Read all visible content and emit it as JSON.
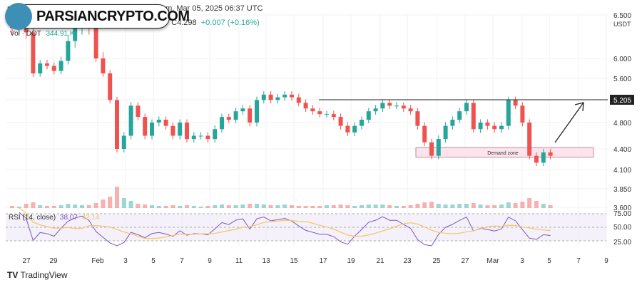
{
  "header": {
    "publisher": "m",
    "published": "published on TradingView.com, Mar 05, 2025 06:37 UTC",
    "ohlc_partial": "8",
    "close": "C4.298",
    "change": "+0.007 (+0.16%)",
    "volume_label": "Vol · DOT",
    "volume_value": "344.91 K"
  },
  "watermark": {
    "text": "PARSIANCRYPTO.COM"
  },
  "footer": {
    "brand": "TradingView"
  },
  "colors": {
    "up": "#26a69a",
    "down": "#ef5350",
    "rsi": "#7e57c2",
    "rsi_ma": "#f5c96a",
    "zone": "#fce4ec"
  },
  "chart_data": {
    "type": "candlestick",
    "currency": "USDT",
    "price_ticks": [
      "6.500",
      "6.000",
      "5.600",
      "5.205",
      "4.800",
      "4.400",
      "4.100",
      "3.850",
      "3.600"
    ],
    "current_level": "5.205",
    "x_ticks": [
      "27",
      "29",
      "Feb",
      "3",
      "5",
      "7",
      "9",
      "11",
      "13",
      "15",
      "17",
      "19",
      "21",
      "23",
      "25",
      "27",
      "Mar",
      "3",
      "5",
      "7",
      "9"
    ],
    "candles_per_day": 2,
    "start_date": "Jan 26",
    "closes": [
      6.35,
      6.4,
      6.3,
      5.7,
      5.9,
      5.85,
      5.75,
      5.95,
      6.2,
      6.35,
      6.45,
      6.35,
      6.0,
      5.7,
      5.2,
      4.4,
      4.6,
      5.1,
      4.9,
      4.6,
      4.8,
      4.85,
      4.75,
      4.6,
      4.8,
      4.55,
      4.6,
      4.6,
      4.55,
      4.7,
      4.9,
      4.85,
      5.0,
      5.05,
      4.8,
      5.2,
      5.3,
      5.2,
      5.25,
      5.3,
      5.25,
      5.15,
      5.05,
      5.0,
      4.95,
      4.95,
      4.9,
      4.75,
      4.65,
      4.75,
      4.85,
      5.0,
      5.05,
      5.15,
      5.1,
      5.1,
      5.05,
      5.0,
      4.75,
      4.5,
      4.3,
      4.55,
      4.75,
      4.85,
      5.0,
      5.15,
      4.7,
      4.8,
      4.75,
      4.7,
      4.75,
      5.2,
      5.1,
      4.8,
      4.3,
      4.2,
      4.35,
      4.3
    ],
    "volumes": [
      3,
      2,
      6,
      8,
      4,
      3,
      3,
      4,
      6,
      5,
      4,
      4,
      7,
      12,
      16,
      30,
      14,
      10,
      6,
      5,
      4,
      3,
      3,
      4,
      3,
      4,
      3,
      2,
      3,
      4,
      5,
      4,
      4,
      5,
      6,
      6,
      5,
      4,
      4,
      5,
      4,
      3,
      3,
      3,
      3,
      4,
      4,
      5,
      4,
      3,
      4,
      5,
      5,
      5,
      4,
      3,
      3,
      4,
      6,
      8,
      9,
      6,
      5,
      5,
      6,
      6,
      7,
      5,
      4,
      4,
      5,
      8,
      7,
      9,
      14,
      10,
      6,
      4
    ],
    "resistance_level": 5.205,
    "demand_zone": {
      "label": "Demand zone",
      "low": 4.28,
      "high": 4.42
    },
    "rsi": {
      "label": "RSI (14, close)",
      "value": "38.07",
      "ma_value": "42.14",
      "levels": [
        "75.00",
        "50.00",
        "25.00"
      ]
    }
  }
}
